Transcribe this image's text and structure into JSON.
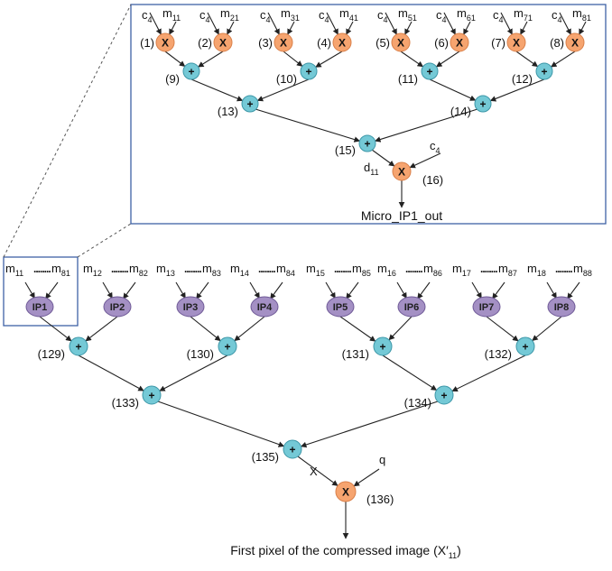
{
  "colors": {
    "mult_fill": "#f6a46f",
    "mult_stroke": "#d9804a",
    "add_fill": "#74c9d6",
    "add_stroke": "#3d97a8",
    "ip_fill": "#a490c4",
    "ip_stroke": "#6f5a97",
    "box_stroke": "#3f62a6",
    "line": "#222222"
  },
  "symbols": {
    "mult": "X",
    "add": "+"
  },
  "micro": {
    "multipliers": [
      {
        "label": "(1)",
        "c": "c",
        "c_sub": "4",
        "m": "m",
        "m_sub": "11"
      },
      {
        "label": "(2)",
        "c": "c",
        "c_sub": "4",
        "m": "m",
        "m_sub": "21"
      },
      {
        "label": "(3)",
        "c": "c",
        "c_sub": "4",
        "m": "m",
        "m_sub": "31"
      },
      {
        "label": "(4)",
        "c": "c",
        "c_sub": "4",
        "m": "m",
        "m_sub": "41"
      },
      {
        "label": "(5)",
        "c": "c",
        "c_sub": "4",
        "m": "m",
        "m_sub": "51"
      },
      {
        "label": "(6)",
        "c": "c",
        "c_sub": "4",
        "m": "m",
        "m_sub": "61"
      },
      {
        "label": "(7)",
        "c": "c",
        "c_sub": "4",
        "m": "m",
        "m_sub": "71"
      },
      {
        "label": "(8)",
        "c": "c",
        "c_sub": "4",
        "m": "m",
        "m_sub": "81"
      }
    ],
    "adders_l1": [
      "(9)",
      "(10)",
      "(11)",
      "(12)"
    ],
    "adders_l2": [
      "(13)",
      "(14)"
    ],
    "adder_l3": "(15)",
    "final_mult": {
      "label": "(16)",
      "c": "c",
      "c_sub": "4",
      "d": "d",
      "d_sub": "11"
    },
    "output": "Micro_IP1_out"
  },
  "macro": {
    "ip_blocks": [
      {
        "name": "IP1",
        "m_first": "11",
        "m_last": "81"
      },
      {
        "name": "IP2",
        "m_first": "12",
        "m_last": "82"
      },
      {
        "name": "IP3",
        "m_first": "13",
        "m_last": "83"
      },
      {
        "name": "IP4",
        "m_first": "14",
        "m_last": "84"
      },
      {
        "name": "IP5",
        "m_first": "15",
        "m_last": "85"
      },
      {
        "name": "IP6",
        "m_first": "16",
        "m_last": "86"
      },
      {
        "name": "IP7",
        "m_first": "17",
        "m_last": "87"
      },
      {
        "name": "IP8",
        "m_first": "18",
        "m_last": "88"
      }
    ],
    "m_symbol": "m",
    "dots": "........",
    "adders_l1": [
      "(129)",
      "(130)",
      "(131)",
      "(132)"
    ],
    "adders_l2": [
      "(133)",
      "(134)"
    ],
    "adder_l3": "(135)",
    "final_mult": {
      "label": "(136)",
      "x": "X",
      "q": "q"
    },
    "output_caption": "First pixel of the compressed image (X′",
    "output_caption_sub": "11",
    "output_caption_end": ")"
  }
}
